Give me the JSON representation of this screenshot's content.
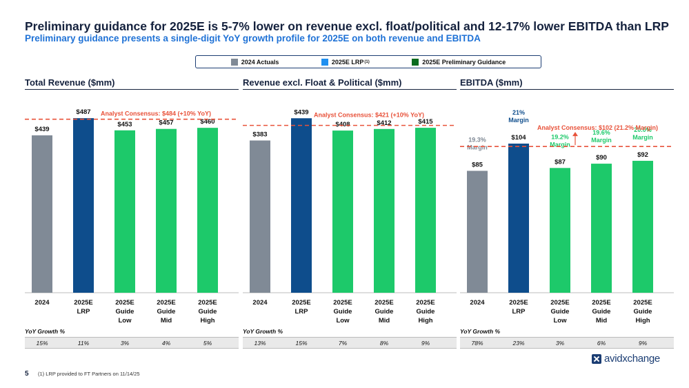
{
  "header": {
    "title": "Preliminary guidance for 2025E is 5-7% lower on revenue excl. float/political and 12-17% lower EBITDA than LRP",
    "subtitle": "Preliminary guidance presents a single-digit  YoY growth profile for 2025E on both revenue and EBITDA"
  },
  "legend": [
    {
      "label": "2024 Actuals",
      "color": "#808a96"
    },
    {
      "label": "2025E LRP",
      "sup": "(1)",
      "color": "#1f8ff0"
    },
    {
      "label": "2025E Preliminary Guidance",
      "color": "#0a6b1e"
    }
  ],
  "yoy_label": "YoY Growth %",
  "chart_data": [
    {
      "type": "bar",
      "title": "Total Revenue ($mm)",
      "categories": [
        [
          "2024"
        ],
        [
          "2025E",
          "LRP"
        ],
        [
          "2025E",
          "Guide",
          "Low"
        ],
        [
          "2025E",
          "Guide",
          "Mid"
        ],
        [
          "2025E",
          "Guide",
          "High"
        ]
      ],
      "values": [
        439,
        487,
        453,
        457,
        460
      ],
      "value_labels": [
        "$439",
        "$487",
        "$453",
        "$457",
        "$460"
      ],
      "colors": [
        "#808a96",
        "#0e4d8c",
        "#1dc96a",
        "#1dc96a",
        "#1dc96a"
      ],
      "ylim": [
        0,
        520
      ],
      "consensus": {
        "value": 484,
        "label": "Analyst Consensus: $484 (+10% YoY)"
      },
      "yoy": [
        "15%",
        "11%",
        "3%",
        "4%",
        "5%"
      ]
    },
    {
      "type": "bar",
      "title": "Revenue excl. Float & Political ($mm)",
      "categories": [
        [
          "2024"
        ],
        [
          "2025E",
          "LRP"
        ],
        [
          "2025E",
          "Guide",
          "Low"
        ],
        [
          "2025E",
          "Guide",
          "Mid"
        ],
        [
          "2025E",
          "Guide",
          "High"
        ]
      ],
      "values": [
        383,
        439,
        408,
        412,
        415
      ],
      "value_labels": [
        "$383",
        "$439",
        "$408",
        "$412",
        "$415"
      ],
      "colors": [
        "#808a96",
        "#0e4d8c",
        "#1dc96a",
        "#1dc96a",
        "#1dc96a"
      ],
      "ylim": [
        0,
        469
      ],
      "consensus": {
        "value": 421,
        "label": "Analyst Consensus: $421  (+10% YoY)"
      },
      "yoy": [
        "13%",
        "15%",
        "7%",
        "8%",
        "9%"
      ]
    },
    {
      "type": "bar",
      "title": "EBITDA ($mm)",
      "categories": [
        [
          "2024"
        ],
        [
          "2025E",
          "LRP"
        ],
        [
          "2025E",
          "Guide",
          "Low"
        ],
        [
          "2025E",
          "Guide",
          "Mid"
        ],
        [
          "2025E",
          "Guide",
          "High"
        ]
      ],
      "values": [
        85,
        104,
        87,
        90,
        92
      ],
      "value_labels": [
        "$85",
        "$104",
        "$87",
        "$90",
        "$92"
      ],
      "colors": [
        "#808a96",
        "#0e4d8c",
        "#1dc96a",
        "#1dc96a",
        "#1dc96a"
      ],
      "ylim": [
        0,
        130
      ],
      "margins": [
        [
          "19.3%",
          "Margin"
        ],
        [
          "21%",
          "Margin"
        ],
        [
          "19.2%",
          "Margin"
        ],
        [
          "19.6%",
          "Margin"
        ],
        [
          "20.0%",
          "Margin"
        ]
      ],
      "margin_colors": [
        "#808a96",
        "#0e4d8c",
        "#1dc96a",
        "#1dc96a",
        "#1dc96a"
      ],
      "consensus": {
        "value": 102,
        "label": "Analyst Consensus: $102 (21.2% Margin)"
      },
      "yoy": [
        "78%",
        "23%",
        "3%",
        "6%",
        "9%"
      ]
    }
  ],
  "footer": {
    "page_number": "5",
    "footnote": "(1)   LRP provided to FT Partners on 11/14/25",
    "logo_text": "avidxchange"
  }
}
